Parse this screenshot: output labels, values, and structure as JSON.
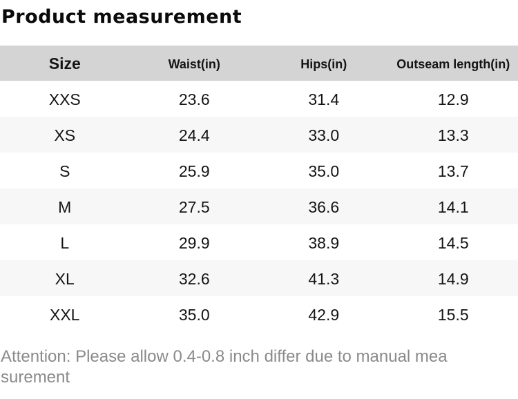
{
  "title": "Product measurement",
  "chart_data": {
    "type": "table",
    "title": "Product measurement",
    "columns": [
      "Size",
      "Waist(in)",
      "Hips(in)",
      "Outseam length(in)"
    ],
    "rows": [
      [
        "XXS",
        "23.6",
        "31.4",
        "12.9"
      ],
      [
        "XS",
        "24.4",
        "33.0",
        "13.3"
      ],
      [
        "S",
        "25.9",
        "35.0",
        "13.7"
      ],
      [
        "M",
        "27.5",
        "36.6",
        "14.1"
      ],
      [
        "L",
        "29.9",
        "38.9",
        "14.5"
      ],
      [
        "XL",
        "32.6",
        "41.3",
        "14.9"
      ],
      [
        "XXL",
        "35.0",
        "42.9",
        "15.5"
      ]
    ]
  },
  "note": {
    "full_text": "Attention: Please allow 0.4-0.8 inch differ due to manual measurement",
    "lines": [
      "Attention: Please allow 0.4-0.8 inch differ due to manual mea",
      "surement"
    ]
  },
  "colors": {
    "header_bg": "#d4d4d4",
    "row_bg": "#ffffff",
    "row_alt_bg": "#f7f7f7",
    "text": "#141414",
    "title_text": "#0a0a0a",
    "note_text": "#8a8a8a"
  }
}
